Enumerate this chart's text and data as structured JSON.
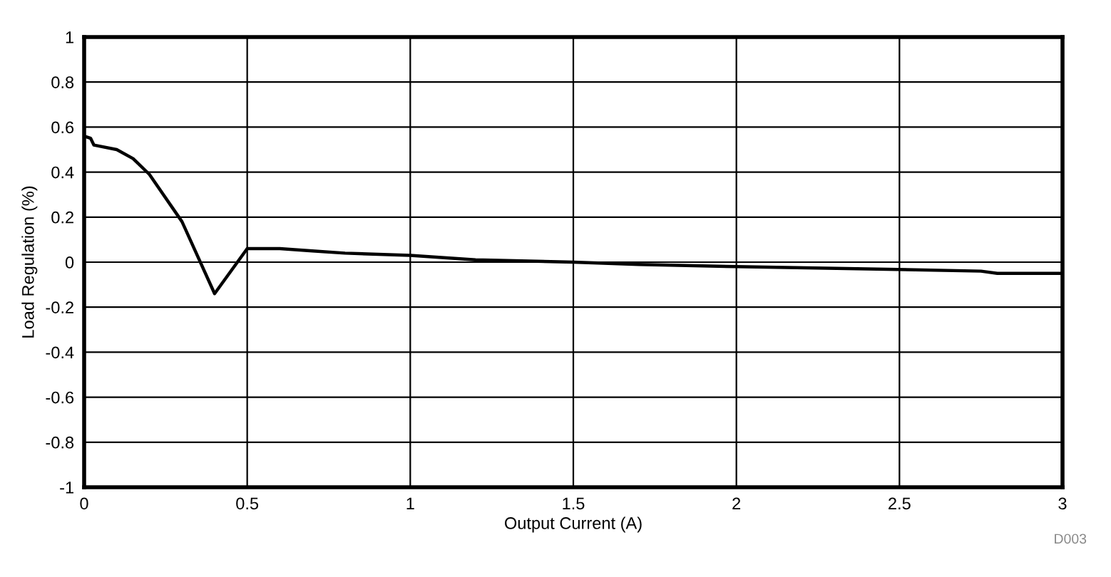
{
  "chart_data": {
    "type": "line",
    "xlabel": "Output Current (A)",
    "ylabel": "Load Regulation (%)",
    "x": [
      0,
      0.02,
      0.03,
      0.1,
      0.15,
      0.2,
      0.3,
      0.4,
      0.5,
      0.6,
      0.7,
      0.8,
      1.0,
      1.2,
      1.5,
      1.7,
      2.0,
      2.4,
      2.75,
      2.8,
      3.0
    ],
    "series": [
      {
        "color": "#000000",
        "values": [
          0.56,
          0.55,
          0.52,
          0.5,
          0.46,
          0.39,
          0.18,
          -0.14,
          0.06,
          0.06,
          0.05,
          0.04,
          0.03,
          0.01,
          0.0,
          -0.01,
          -0.02,
          -0.03,
          -0.04,
          -0.05,
          -0.05
        ]
      }
    ],
    "xlim": [
      0,
      3
    ],
    "xticks": [
      0,
      0.5,
      1,
      1.5,
      2,
      2.5,
      3
    ],
    "ylim": [
      -1,
      1
    ],
    "yticks": [
      -1,
      -0.8,
      -0.6,
      -0.4,
      -0.2,
      0,
      0.2,
      0.4,
      0.6,
      0.8,
      1
    ],
    "grid": true,
    "marker": "none",
    "line_style": "solid",
    "legend": false,
    "annotations": [
      "D003"
    ]
  }
}
